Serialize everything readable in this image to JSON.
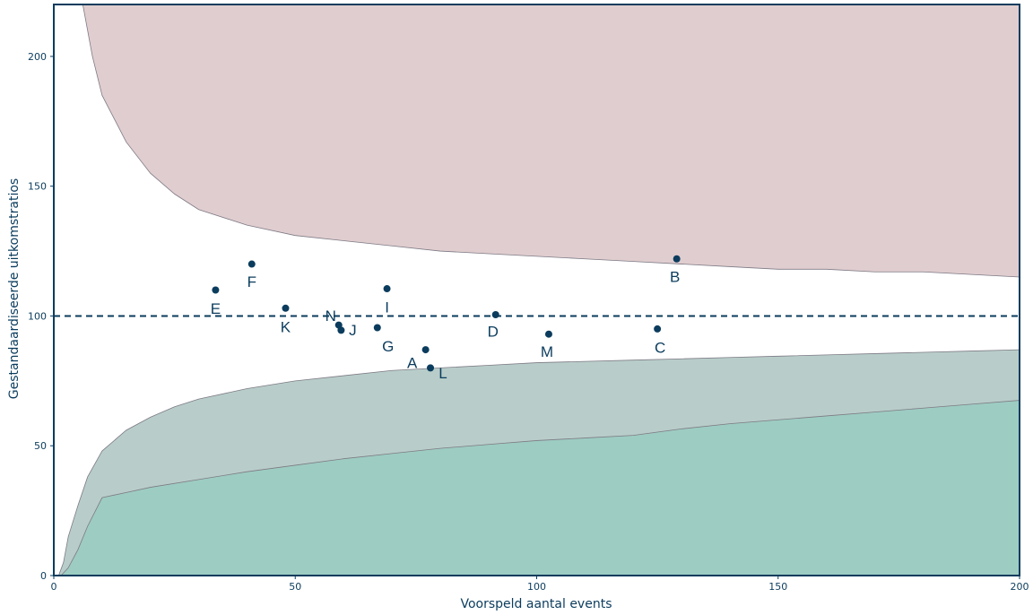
{
  "chart_data": {
    "type": "scatter",
    "title": "",
    "xlabel": "Voorspeld aantal events",
    "ylabel": "Gestandaardiseerde uitkomstratios",
    "xlim": [
      0,
      200
    ],
    "ylim": [
      0,
      220
    ],
    "x_ticks": [
      0,
      50,
      100,
      150,
      200
    ],
    "y_ticks": [
      0,
      50,
      100,
      150,
      200
    ],
    "grid": false,
    "reference_line": {
      "y": 100,
      "style": "dashed",
      "color": "#0b3c5d"
    },
    "points": [
      {
        "label": "A",
        "x": 77,
        "y": 87
      },
      {
        "label": "B",
        "x": 129,
        "y": 122
      },
      {
        "label": "C",
        "x": 125,
        "y": 95
      },
      {
        "label": "D",
        "x": 91.5,
        "y": 100.5
      },
      {
        "label": "E",
        "x": 33.5,
        "y": 110
      },
      {
        "label": "F",
        "x": 41,
        "y": 120
      },
      {
        "label": "G",
        "x": 67,
        "y": 95.5
      },
      {
        "label": "I",
        "x": 69,
        "y": 110.5
      },
      {
        "label": "J",
        "x": 59.5,
        "y": 94.5
      },
      {
        "label": "K",
        "x": 48,
        "y": 103
      },
      {
        "label": "L",
        "x": 78,
        "y": 80
      },
      {
        "label": "M",
        "x": 102.5,
        "y": 93
      },
      {
        "label": "N",
        "x": 59,
        "y": 96.5
      }
    ],
    "bands": [
      {
        "name": "upper_outer",
        "color": "#e19593",
        "x": [
          24,
          30,
          40,
          50,
          60,
          70,
          80,
          90,
          100,
          110,
          120,
          130,
          140,
          150,
          160,
          170,
          180,
          190,
          200
        ],
        "y": [
          220,
          216,
          209,
          202,
          196,
          190,
          186,
          182,
          178,
          175,
          172,
          168,
          165,
          162,
          159,
          157,
          154,
          150,
          146
        ]
      },
      {
        "name": "upper_inner",
        "color": "#e0cdcf",
        "x": [
          6,
          8,
          10,
          15,
          20,
          25,
          30,
          40,
          50,
          60,
          70,
          80,
          90,
          100,
          110,
          120,
          130,
          140,
          150,
          160,
          170,
          180,
          190,
          200
        ],
        "y": [
          220,
          200,
          185,
          167,
          155,
          147,
          141,
          135,
          131,
          129,
          127,
          125,
          124,
          123,
          122,
          121,
          120,
          119,
          118,
          118,
          117,
          117,
          116,
          115
        ]
      },
      {
        "name": "lower_inner",
        "color": "#b8cdc9",
        "x": [
          1,
          2,
          3,
          5,
          7,
          10,
          15,
          20,
          25,
          30,
          40,
          50,
          60,
          70,
          80,
          90,
          100,
          110,
          120,
          130,
          140,
          150,
          160,
          170,
          180,
          190,
          200
        ],
        "y": [
          0,
          5,
          15,
          27,
          38,
          48,
          56,
          61,
          65,
          68,
          72,
          75,
          77,
          79,
          80,
          81,
          82,
          82.5,
          83,
          83.5,
          84,
          84.5,
          85,
          85.5,
          86,
          86.5,
          87
        ]
      },
      {
        "name": "lower_outer",
        "color": "#9dccc2",
        "x": [
          1.5,
          3,
          5,
          7,
          10,
          15,
          20,
          30,
          40,
          50,
          60,
          70,
          80,
          90,
          100,
          110,
          120,
          130,
          140,
          150,
          160,
          170,
          180,
          190,
          200
        ],
        "y": [
          0,
          3,
          10,
          19,
          30,
          32,
          34,
          37,
          40,
          42.5,
          45,
          47,
          49,
          50.5,
          52,
          53,
          54,
          56.5,
          58.5,
          60,
          61.5,
          63,
          64.5,
          66,
          67.5
        ]
      }
    ]
  }
}
